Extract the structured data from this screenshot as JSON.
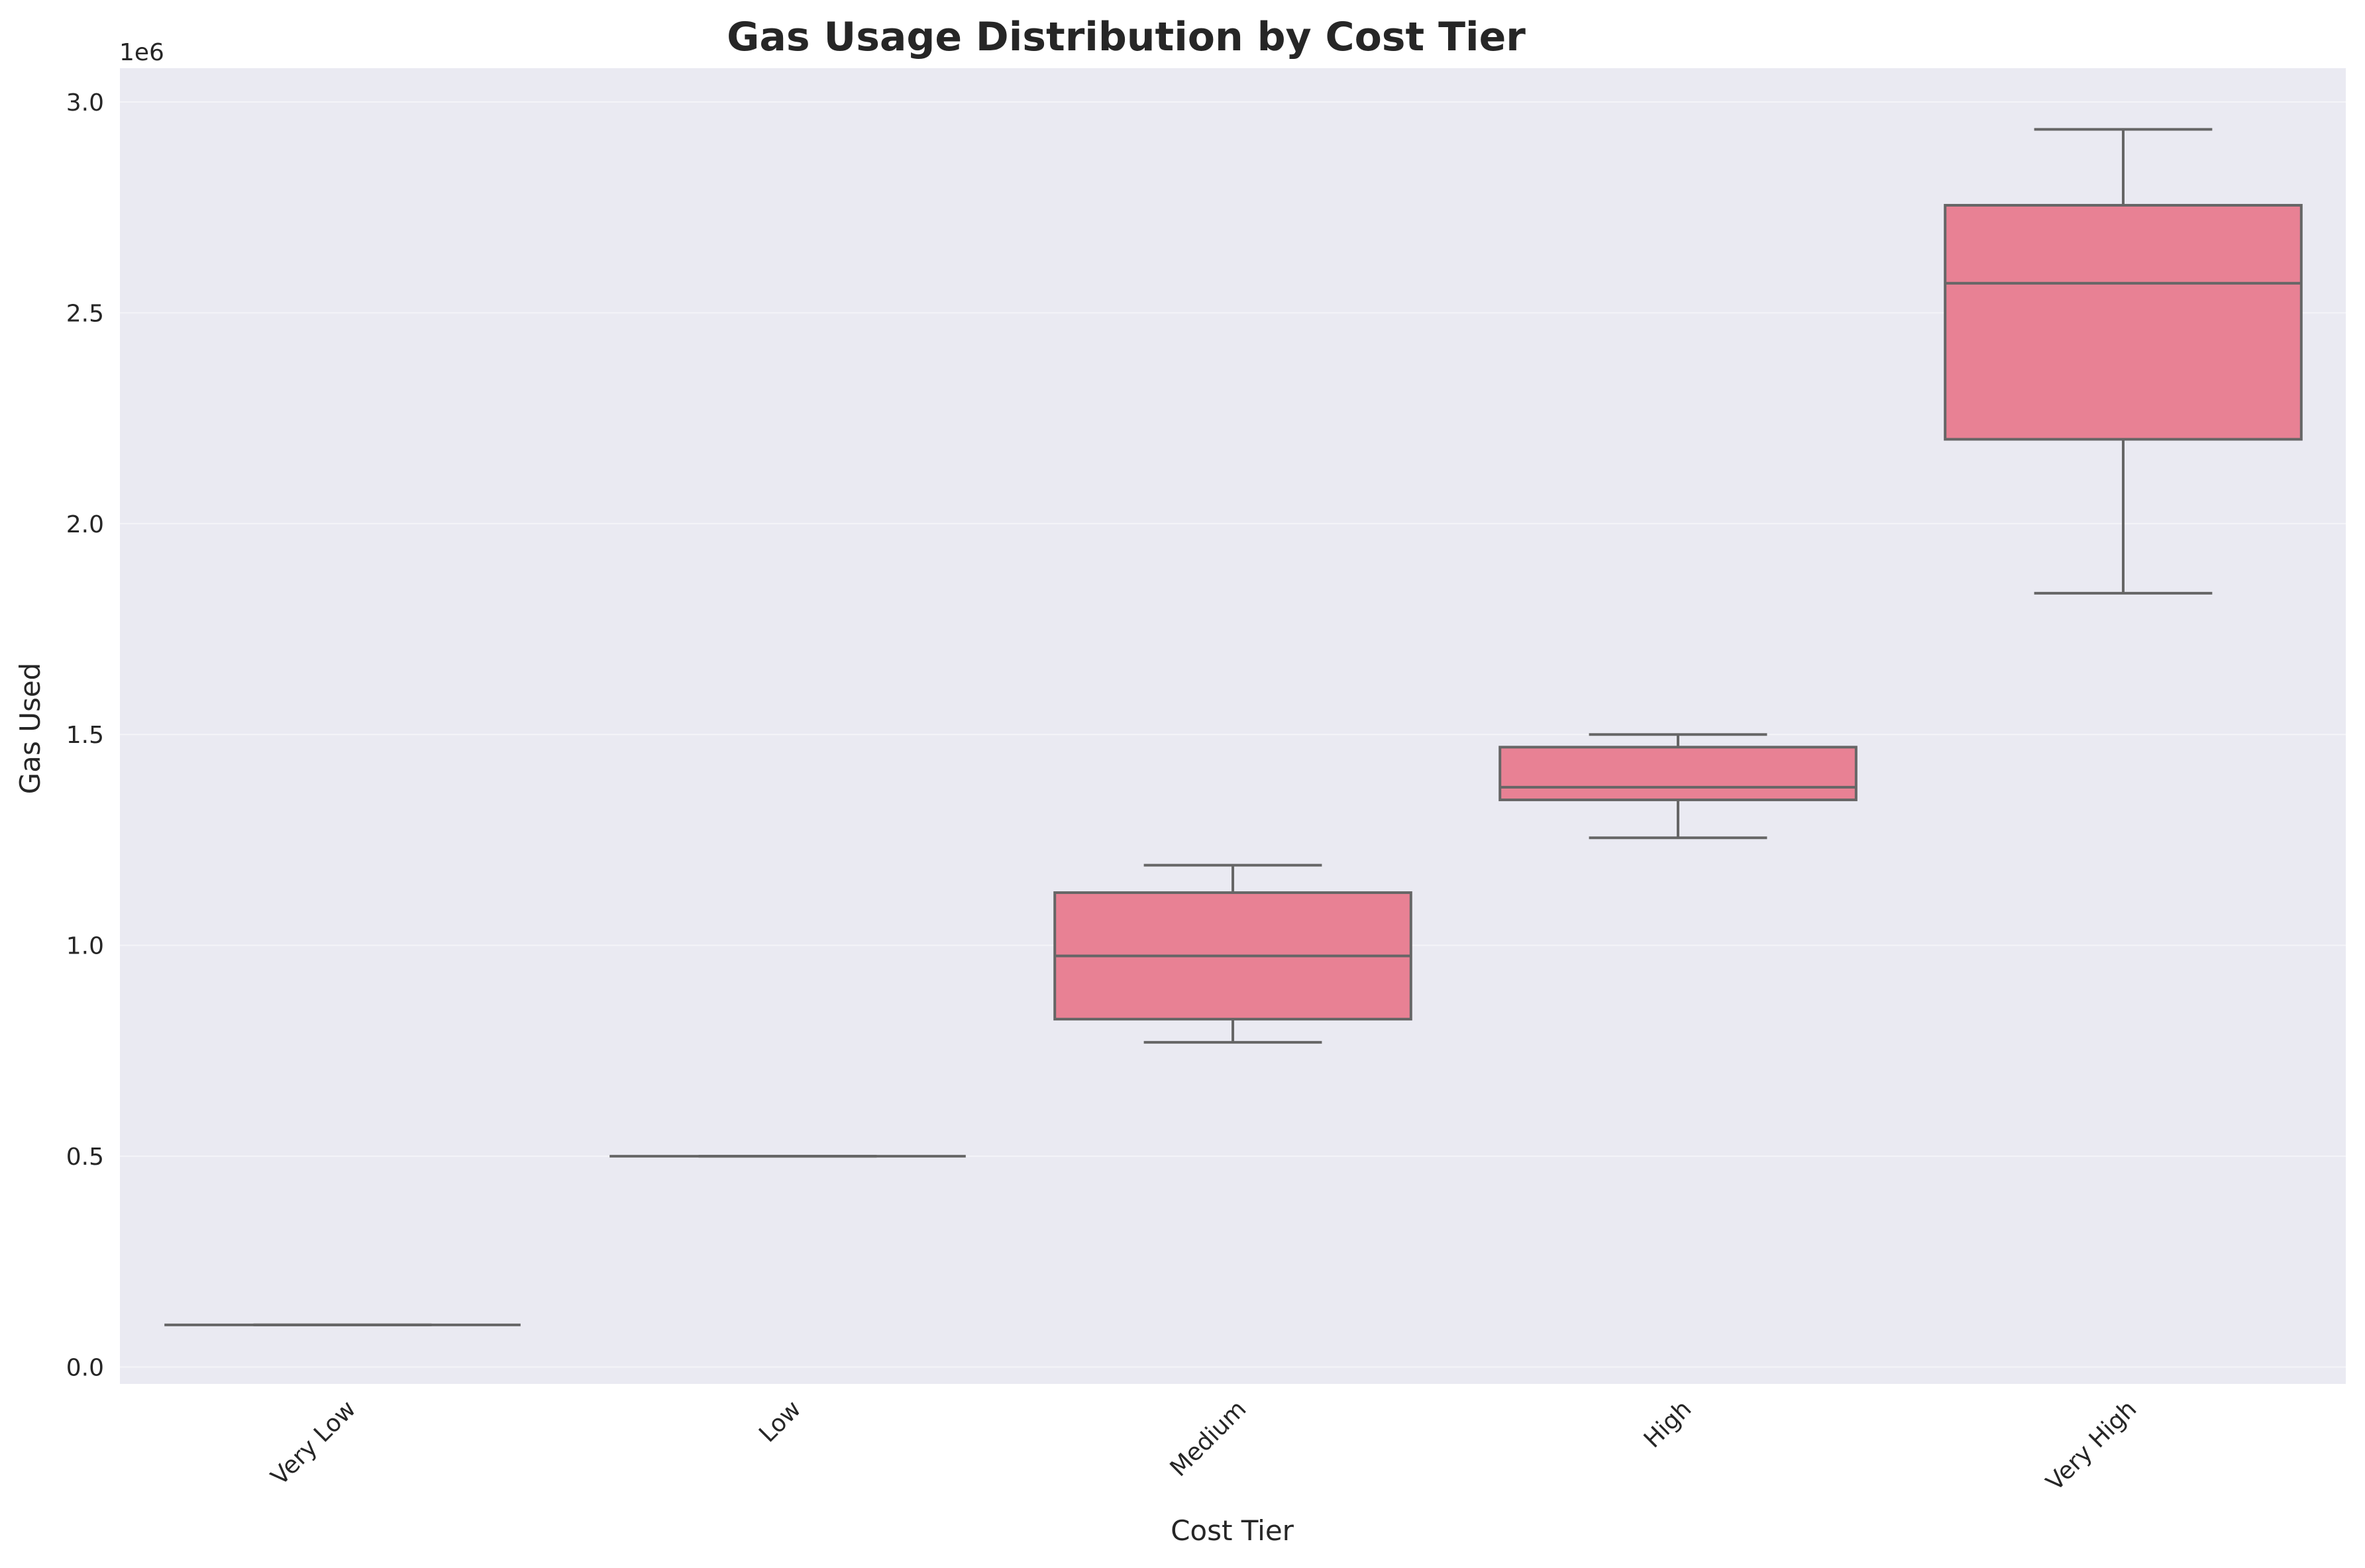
{
  "chart_data": {
    "type": "box",
    "title": "Gas Usage Distribution by Cost Tier",
    "xlabel": "Cost Tier",
    "ylabel": "Gas Used",
    "y_offset_label": "1e6",
    "y_scale": 1000000,
    "ylim": [
      -40000,
      3080000
    ],
    "yticks": [
      0,
      500000,
      1000000,
      1500000,
      2000000,
      2500000,
      3000000
    ],
    "ytick_labels": [
      "0.0",
      "0.5",
      "1.0",
      "1.5",
      "2.0",
      "2.5",
      "3.0"
    ],
    "categories": [
      "Very Low",
      "Low",
      "Medium",
      "High",
      "Very High"
    ],
    "boxes": [
      {
        "category": "Very Low",
        "whislo": 100000,
        "q1": 100000,
        "med": 100000,
        "q3": 100000,
        "whishi": 100000
      },
      {
        "category": "Low",
        "whislo": 500000,
        "q1": 500000,
        "med": 500000,
        "q3": 500000,
        "whishi": 500000
      },
      {
        "category": "Medium",
        "whislo": 770000,
        "q1": 825000,
        "med": 975000,
        "q3": 1125000,
        "whishi": 1190000
      },
      {
        "category": "High",
        "whislo": 1255000,
        "q1": 1345000,
        "med": 1375000,
        "q3": 1470000,
        "whishi": 1500000
      },
      {
        "category": "Very High",
        "whislo": 1835000,
        "q1": 2200000,
        "med": 2570000,
        "q3": 2755000,
        "whishi": 2935000
      }
    ],
    "grid": true,
    "colors": {
      "plot_background": "#eaeaf2",
      "box_fill": "#e88194",
      "box_edge": "#666666",
      "grid": "#ffffff"
    }
  }
}
